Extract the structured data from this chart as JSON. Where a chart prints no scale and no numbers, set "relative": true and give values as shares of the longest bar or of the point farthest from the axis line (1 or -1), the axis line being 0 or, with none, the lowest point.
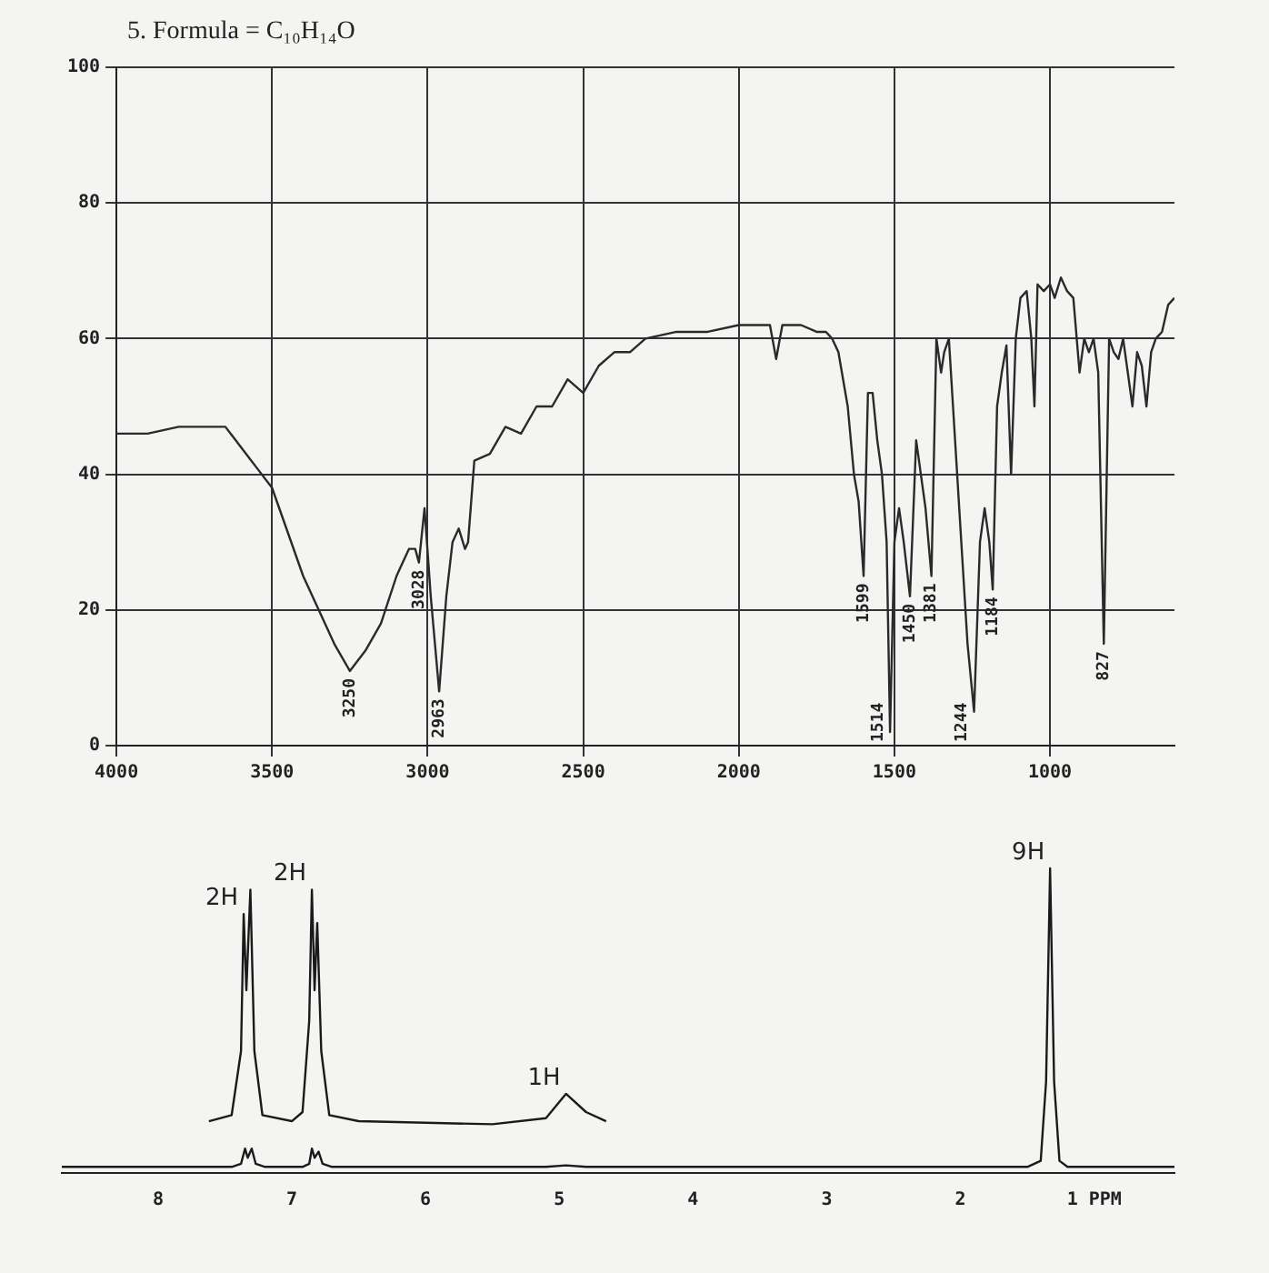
{
  "chart_data": [
    {
      "type": "line",
      "title": "5. Formula = C₁₀H₁₄O",
      "x": [
        4000,
        3900,
        3800,
        3700,
        3650,
        3600,
        3550,
        3500,
        3400,
        3300,
        3250,
        3200,
        3150,
        3100,
        3080,
        3060,
        3040,
        3028,
        3010,
        2990,
        2963,
        2940,
        2920,
        2900,
        2880,
        2870,
        2850,
        2800,
        2750,
        2700,
        2650,
        2600,
        2550,
        2500,
        2450,
        2400,
        2350,
        2300,
        2200,
        2100,
        2000,
        1950,
        1900,
        1880,
        1860,
        1800,
        1750,
        1720,
        1700,
        1680,
        1650,
        1630,
        1615,
        1599,
        1585,
        1570,
        1555,
        1540,
        1525,
        1514,
        1500,
        1485,
        1470,
        1450,
        1430,
        1415,
        1400,
        1381,
        1365,
        1350,
        1340,
        1325,
        1305,
        1285,
        1265,
        1244,
        1225,
        1210,
        1195,
        1184,
        1170,
        1155,
        1140,
        1125,
        1110,
        1095,
        1075,
        1060,
        1050,
        1040,
        1020,
        1000,
        985,
        965,
        945,
        925,
        905,
        890,
        875,
        860,
        845,
        827,
        810,
        795,
        780,
        765,
        750,
        735,
        720,
        705,
        690,
        675,
        660,
        640,
        620,
        600
      ],
      "series": [
        {
          "color": "#2a2a2a",
          "values": [
            46,
            46,
            47,
            47,
            47,
            44,
            41,
            38,
            25,
            15,
            11,
            14,
            18,
            25,
            27,
            29,
            29,
            27,
            35,
            22,
            8,
            22,
            30,
            32,
            29,
            30,
            42,
            43,
            47,
            46,
            50,
            50,
            54,
            52,
            56,
            58,
            58,
            60,
            61,
            61,
            62,
            62,
            62,
            57,
            62,
            62,
            61,
            61,
            60,
            58,
            50,
            40,
            36,
            25,
            52,
            52,
            45,
            40,
            30,
            2,
            30,
            35,
            30,
            22,
            45,
            40,
            35,
            25,
            60,
            55,
            58,
            60,
            45,
            30,
            15,
            5,
            30,
            35,
            30,
            23,
            50,
            55,
            59,
            40,
            60,
            66,
            67,
            60,
            50,
            68,
            67,
            68,
            66,
            69,
            67,
            66,
            55,
            60,
            58,
            60,
            55,
            15,
            60,
            58,
            57,
            60,
            55,
            50,
            58,
            56,
            50,
            58,
            60,
            61,
            65,
            66
          ]
        }
      ],
      "xlim": [
        4000,
        600
      ],
      "xticks": [
        4000,
        3500,
        3000,
        2500,
        2000,
        1500,
        1000
      ],
      "ylim": [
        0,
        100
      ],
      "yticks": [
        0,
        20,
        40,
        60,
        80,
        100
      ],
      "grid": true,
      "annotations": [
        {
          "text": "3250",
          "x": 3250,
          "y": 11
        },
        {
          "text": "3028",
          "x": 3028,
          "y": 27
        },
        {
          "text": "2963",
          "x": 2963,
          "y": 8
        },
        {
          "text": "1599",
          "x": 1599,
          "y": 25
        },
        {
          "text": "1514",
          "x": 1514,
          "y": 2
        },
        {
          "text": "1450",
          "x": 1450,
          "y": 22
        },
        {
          "text": "1381",
          "x": 1381,
          "y": 25
        },
        {
          "text": "1244",
          "x": 1244,
          "y": 5
        },
        {
          "text": "1184",
          "x": 1184,
          "y": 23
        },
        {
          "text": "827",
          "x": 827,
          "y": 15
        }
      ]
    },
    {
      "type": "line",
      "relative": true,
      "series": [
        {
          "color": "#1a1a1a",
          "x": [
            8.72,
            7.45,
            7.38,
            7.35,
            7.33,
            7.3,
            7.27,
            7.2,
            6.92,
            6.87,
            6.85,
            6.83,
            6.8,
            6.77,
            6.7,
            5.1,
            4.95,
            4.8,
            1.5,
            1.4,
            1.36,
            1.33,
            1.3,
            1.26,
            1.2,
            0.4
          ],
          "values": [
            0.02,
            0.02,
            0.03,
            0.08,
            0.05,
            0.08,
            0.03,
            0.02,
            0.02,
            0.03,
            0.08,
            0.05,
            0.07,
            0.03,
            0.02,
            0.02,
            0.025,
            0.02,
            0.02,
            0.04,
            0.3,
            1,
            0.3,
            0.04,
            0.02,
            0.02
          ]
        },
        {
          "color": "#1a1a1a",
          "x": [
            7.62,
            7.45,
            7.38,
            7.36,
            7.34,
            7.31,
            7.28,
            7.22,
            7.0,
            6.92,
            6.87,
            6.85,
            6.83,
            6.81,
            6.78,
            6.72,
            6.5,
            5.5,
            5.1,
            4.95,
            4.8,
            4.65
          ],
          "values": [
            0.17,
            0.19,
            0.4,
            0.85,
            0.6,
            0.93,
            0.4,
            0.19,
            0.17,
            0.2,
            0.5,
            0.93,
            0.6,
            0.82,
            0.4,
            0.19,
            0.17,
            0.16,
            0.18,
            0.26,
            0.2,
            0.17
          ]
        }
      ],
      "xlim": [
        8.72,
        0.4
      ],
      "xticks": [
        8,
        7,
        6,
        5,
        4,
        3,
        2,
        {
          "value": 1,
          "label": "1 PPM"
        }
      ],
      "annotations": [
        {
          "text": "2H",
          "x": 7.36,
          "y": 0.85
        },
        {
          "text": "2H",
          "x": 6.85,
          "y": 0.93
        },
        {
          "text": "1H",
          "x": 4.95,
          "y": 0.26
        },
        {
          "text": "9H",
          "x": 1.33,
          "y": 1
        }
      ]
    }
  ]
}
